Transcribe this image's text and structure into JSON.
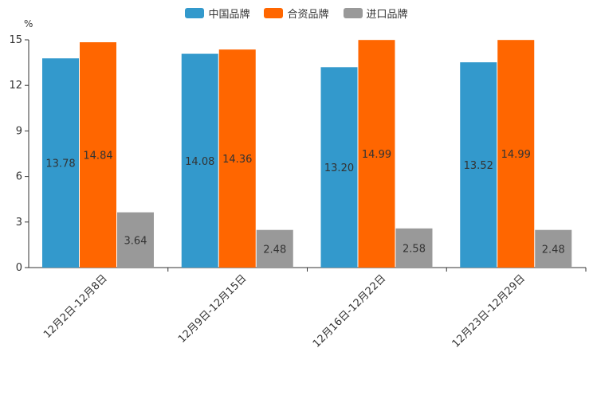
{
  "chart_data": {
    "type": "bar",
    "unit_label": "%",
    "categories": [
      "12月2日-12月8日",
      "12月9日-12月15日",
      "12月16日-12月22日",
      "12月23日-12月29日"
    ],
    "series": [
      {
        "name": "中国品牌",
        "color": "#3399cc",
        "values": [
          13.78,
          14.08,
          13.2,
          13.52
        ],
        "labels": [
          "13.78",
          "14.08",
          "13.20",
          "13.52"
        ]
      },
      {
        "name": "合资品牌",
        "color": "#ff6600",
        "values": [
          14.84,
          14.36,
          14.99,
          14.99
        ],
        "labels": [
          "14.84",
          "14.36",
          "14.99",
          "14.99"
        ]
      },
      {
        "name": "进口品牌",
        "color": "#999999",
        "values": [
          3.64,
          2.48,
          2.58,
          2.48
        ],
        "labels": [
          "3.64",
          "2.48",
          "2.58",
          "2.48"
        ]
      }
    ],
    "yticks": [
      0,
      3,
      6,
      9,
      12,
      15
    ],
    "ylim": [
      0,
      15
    ],
    "grid": false,
    "legend": "top-center"
  }
}
